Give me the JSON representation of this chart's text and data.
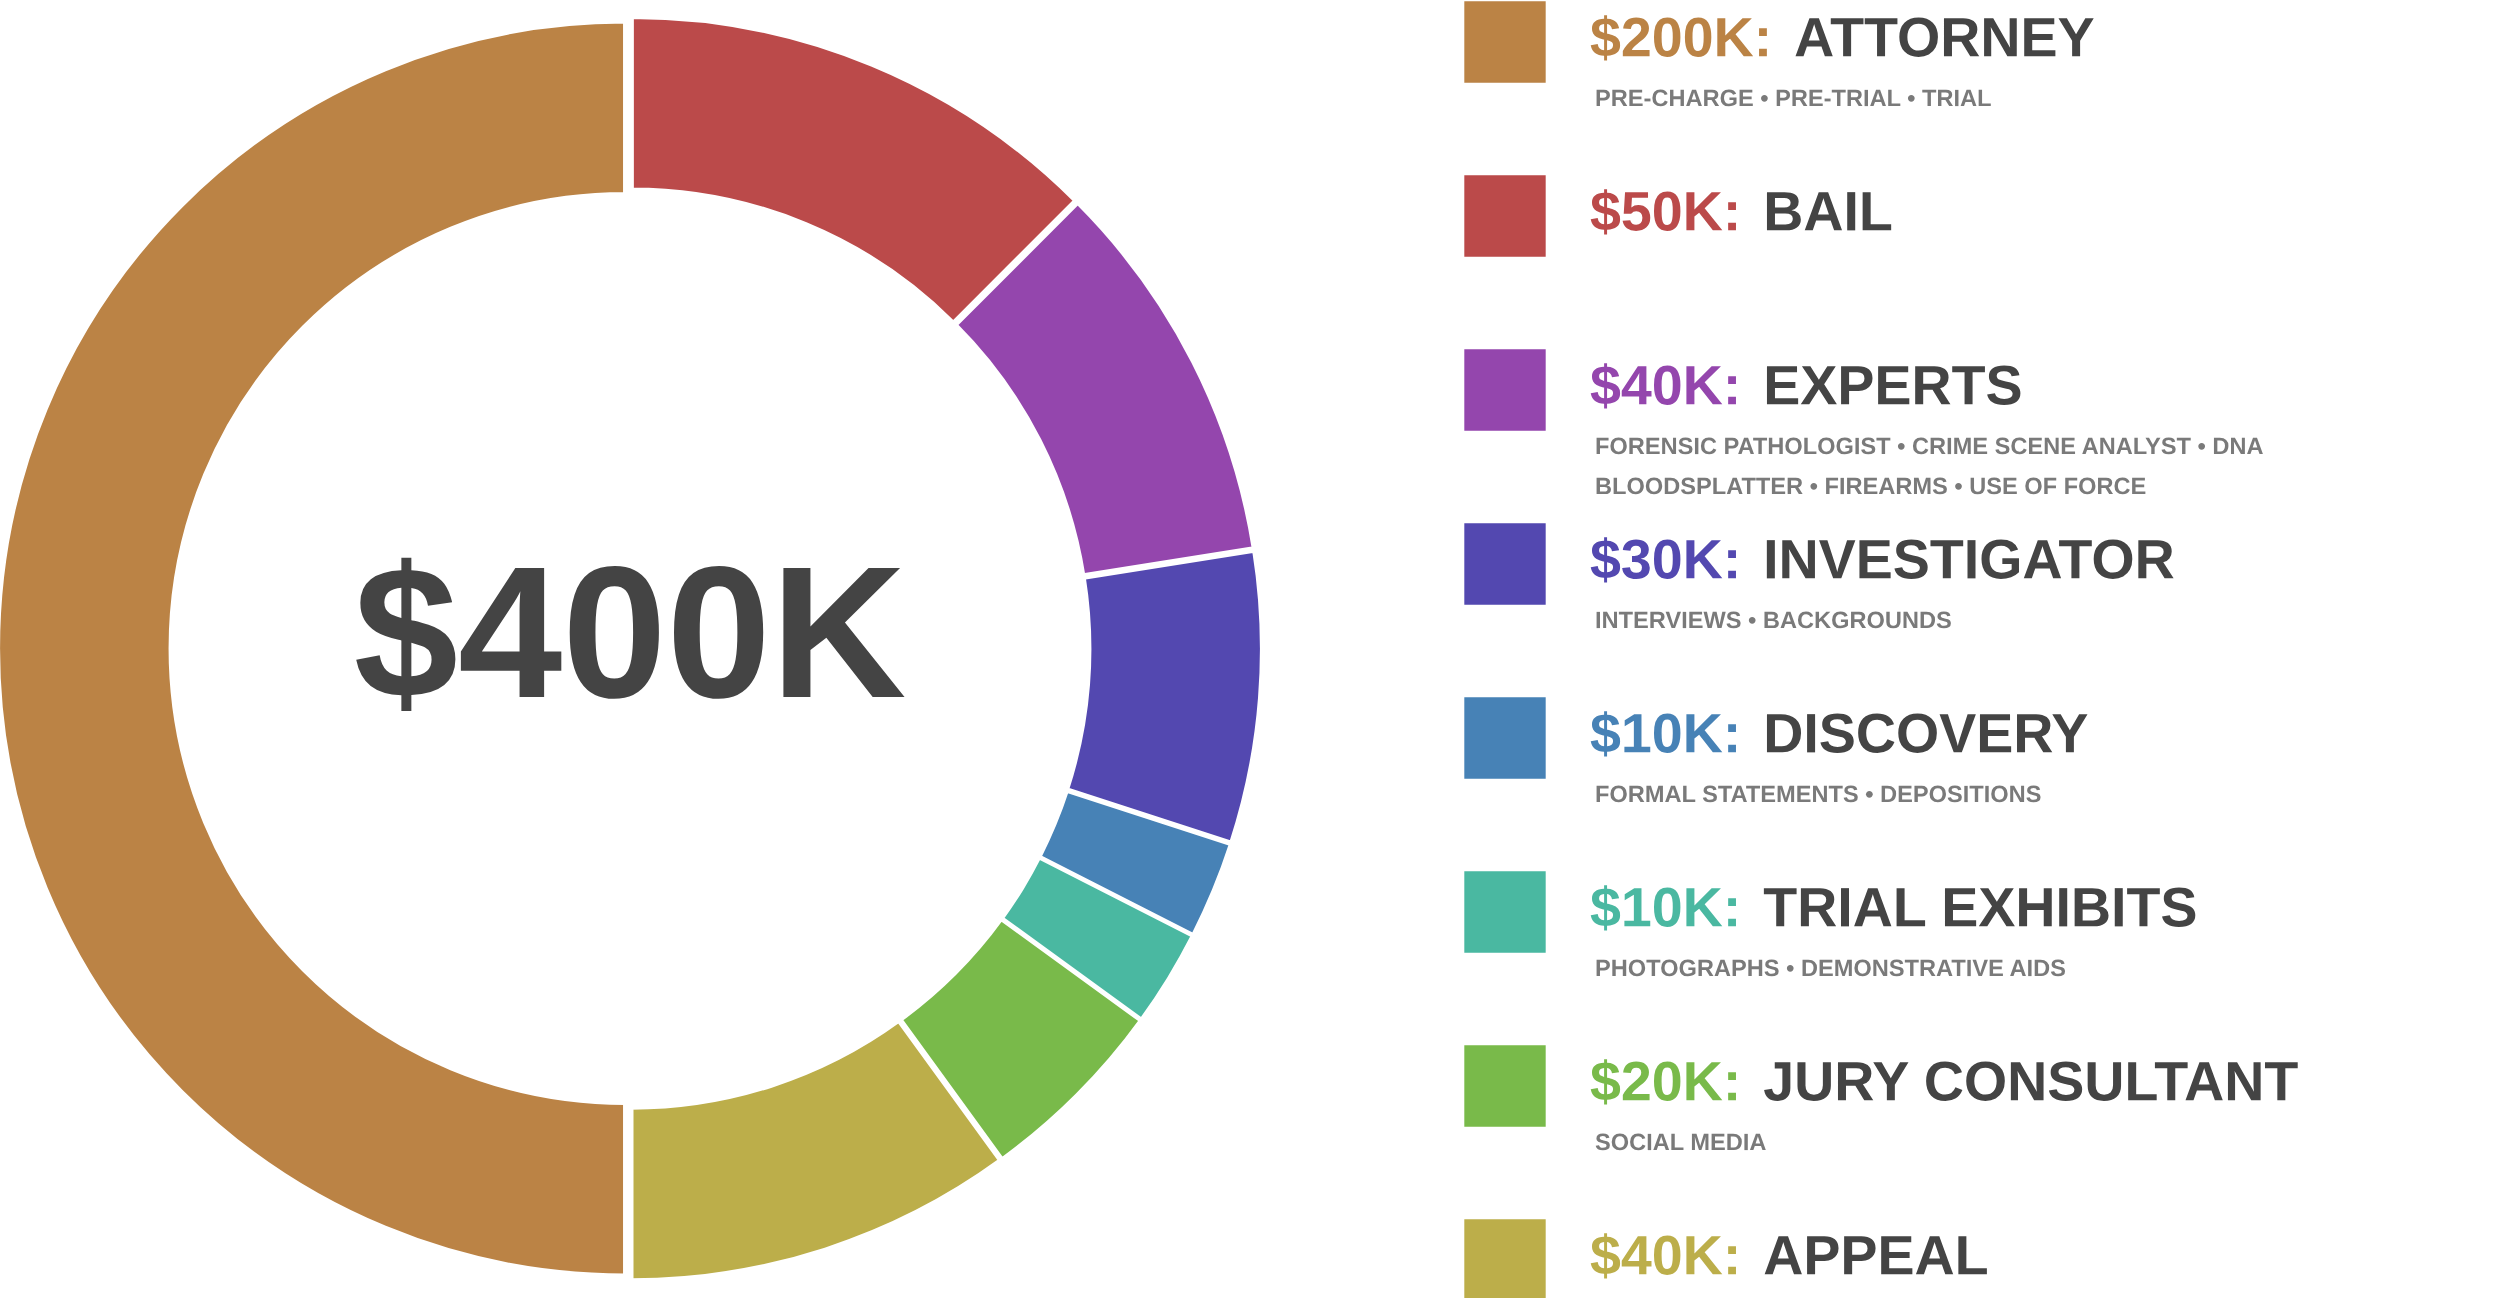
{
  "chart_data": {
    "type": "donut",
    "categories": [
      "$200K: ATTORNEY\nPRE-CHARGE • PRE-TRIAL • TRIAL",
      "$50K: BAIL",
      "$40K: EXPERTS\nFORENSIC PATHOLOGIST • CRIME SCENE ANALYST • DNA\nBLOODSPLATTER • FIREARMS • USE OF FORCE",
      "$30K: INVESTIGATOR\nINTERVIEWS • BACKGROUNDS",
      "$10K: DISCOVERY\nFORMAL STATEMENTS • DEPOSITIONS",
      "$10K: TRIAL EXHIBITS\nPHOTOGRAPHS • DEMONSTRATIVE AIDS",
      "$20K: JURY CONSULTANT\nSOCIAL MEDIA",
      "$40K: APPEAL"
    ],
    "values": [
      200,
      50,
      40,
      30,
      10,
      10,
      20,
      40
    ],
    "colors": [
      "#bb8345",
      "#bb4a4a",
      "#9446ad",
      "#5348b0",
      "#4782b6",
      "#4ab8a1",
      "#79ba4a",
      "#bcae4a"
    ],
    "annotations": [
      "$400K"
    ],
    "legend": "right"
  }
}
